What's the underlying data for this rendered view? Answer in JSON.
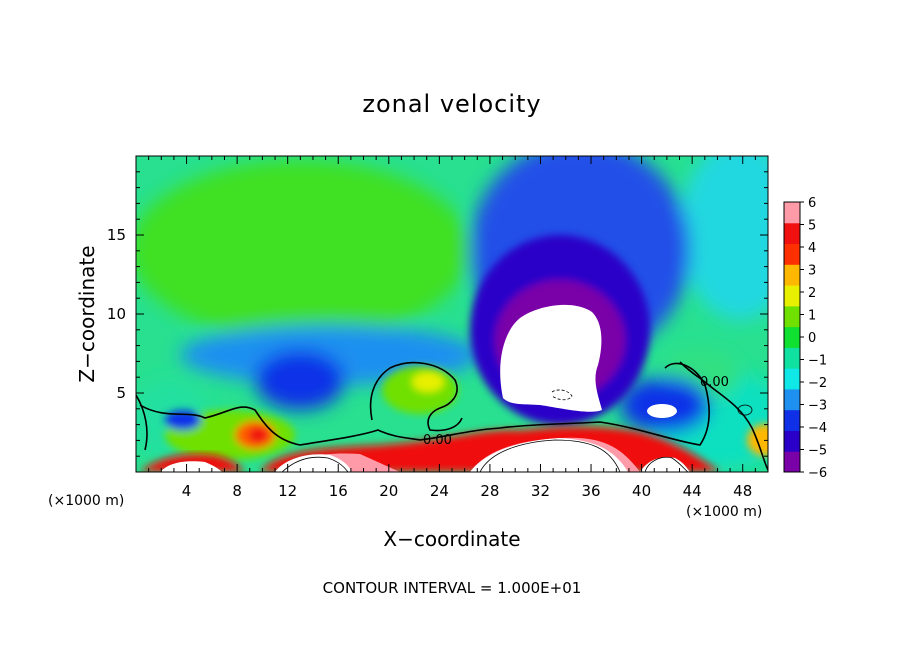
{
  "chart_data": {
    "type": "heatmap",
    "title": "zonal velocity",
    "xlabel": "X−coordinate",
    "ylabel": "Z−coordinate",
    "x_unit_left": "(×1000 m)",
    "x_unit_right": "(×1000 m)",
    "xlim": [
      0,
      50
    ],
    "ylim": [
      0,
      20
    ],
    "x_ticks": [
      4,
      8,
      12,
      16,
      20,
      24,
      28,
      32,
      36,
      40,
      44,
      48
    ],
    "x_tick_labels": [
      "4",
      "8",
      "12",
      "16",
      "20",
      "24",
      "28",
      "32",
      "36",
      "40",
      "44",
      "48"
    ],
    "y_ticks": [
      5,
      10,
      15
    ],
    "y_tick_labels": [
      "5",
      "10",
      "15"
    ],
    "colorbar": {
      "min": -6,
      "max": 6,
      "tick_labels": [
        "6",
        "5",
        "4",
        "3",
        "2",
        "1",
        "0",
        "−1",
        "−2",
        "−3",
        "−4",
        "−5",
        "−6"
      ],
      "colors": [
        "#7a00a8",
        "#2a00c8",
        "#1030e8",
        "#1e90f0",
        "#10e8e8",
        "#10e0a0",
        "#10e030",
        "#70e000",
        "#e8f000",
        "#ffb800",
        "#ff3000",
        "#f01010",
        "#ff9aa8"
      ]
    },
    "contour_labels": [
      "0.00",
      "0.00"
    ],
    "features": [
      {
        "name": "upper-jet-core",
        "x": 33,
        "z": 8.5,
        "value": -6
      },
      {
        "name": "weak-easterly-left",
        "x": 14,
        "z": 5,
        "value": -4.5
      },
      {
        "name": "weak-easterly-right",
        "x": 41,
        "z": 4.5,
        "value": -5
      },
      {
        "name": "westerly-bubble",
        "x": 23,
        "z": 5.5,
        "value": 1.5
      },
      {
        "name": "near-surface-westerly",
        "x": 10,
        "z": 2.3,
        "value": 4.5
      },
      {
        "name": "surface-layer",
        "x": 30,
        "z": 2.5,
        "value": 6
      }
    ],
    "footer": "CONTOUR INTERVAL = 1.000E+01"
  }
}
